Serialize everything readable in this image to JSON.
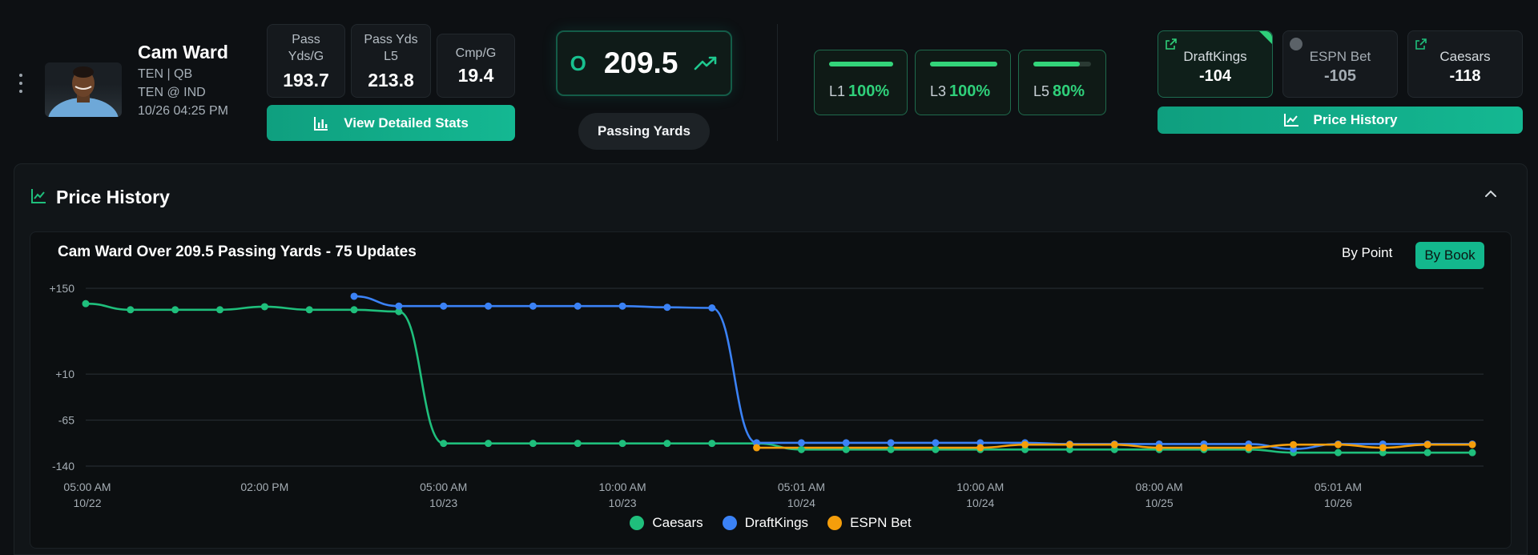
{
  "player": {
    "name": "Cam Ward",
    "team_pos": "TEN | QB",
    "matchup": "TEN @ IND",
    "datetime": "10/26 04:25 PM"
  },
  "stats": [
    {
      "label": "Pass Yds/G",
      "value": "193.7"
    },
    {
      "label": "Pass Yds L5",
      "value": "213.8"
    },
    {
      "label": "Cmp/G",
      "value": "19.4"
    }
  ],
  "buttons": {
    "view_stats": "View Detailed Stats",
    "price_history": "Price History"
  },
  "line": {
    "side": "O",
    "value": "209.5",
    "market": "Passing Yards"
  },
  "hit_rates": [
    {
      "label": "L1",
      "value": "100%",
      "pct": 100
    },
    {
      "label": "L3",
      "value": "100%",
      "pct": 100
    },
    {
      "label": "L5",
      "value": "80%",
      "pct": 80
    }
  ],
  "books": [
    {
      "name": "DraftKings",
      "price": "-104"
    },
    {
      "name": "ESPN Bet",
      "price": "-105"
    },
    {
      "name": "Caesars",
      "price": "-118"
    }
  ],
  "panel": {
    "title": "Price History",
    "by_point": "By Point",
    "by_book": "By Book"
  },
  "chart_data": {
    "type": "line",
    "title": "Cam Ward Over 209.5 Passing Yards - 75 Updates",
    "y_ticks": [
      150,
      10,
      -65,
      -140
    ],
    "y_tick_labels": [
      "+150",
      "+10",
      "-65",
      "-140"
    ],
    "ylim": [
      -140,
      150
    ],
    "xlim": [
      0,
      31
    ],
    "x_tick_pos": [
      0,
      4,
      8,
      12,
      16,
      20,
      24,
      28
    ],
    "x_tick_labels": [
      [
        "05:00 AM",
        "10/22"
      ],
      [
        "02:00 PM",
        ""
      ],
      [
        "05:00 AM",
        "10/23"
      ],
      [
        "10:00 AM",
        "10/23"
      ],
      [
        "05:01 AM",
        "10/24"
      ],
      [
        "10:00 AM",
        "10/24"
      ],
      [
        "08:00 AM",
        "10/25"
      ],
      [
        "05:01 AM",
        "10/26"
      ]
    ],
    "series": [
      {
        "name": "Caesars",
        "color": "#1fbf7c",
        "points": [
          [
            0,
            125
          ],
          [
            1,
            115
          ],
          [
            2,
            115
          ],
          [
            3,
            115
          ],
          [
            4,
            120
          ],
          [
            5,
            115
          ],
          [
            6,
            115
          ],
          [
            7,
            112
          ],
          [
            8,
            -103
          ],
          [
            9,
            -103
          ],
          [
            10,
            -103
          ],
          [
            11,
            -103
          ],
          [
            12,
            -103
          ],
          [
            13,
            -103
          ],
          [
            14,
            -103
          ],
          [
            15,
            -103
          ],
          [
            16,
            -113
          ],
          [
            17,
            -113
          ],
          [
            18,
            -113
          ],
          [
            19,
            -113
          ],
          [
            20,
            -113
          ],
          [
            21,
            -113
          ],
          [
            22,
            -113
          ],
          [
            23,
            -113
          ],
          [
            24,
            -113
          ],
          [
            25,
            -113
          ],
          [
            26,
            -113
          ],
          [
            27,
            -118
          ],
          [
            28,
            -118
          ],
          [
            29,
            -118
          ],
          [
            30,
            -118
          ],
          [
            31,
            -118
          ]
        ]
      },
      {
        "name": "DraftKings",
        "color": "#3b82f6",
        "points": [
          [
            6,
            137
          ],
          [
            7,
            121
          ],
          [
            8,
            121
          ],
          [
            9,
            121
          ],
          [
            10,
            121
          ],
          [
            11,
            121
          ],
          [
            12,
            121
          ],
          [
            13,
            119
          ],
          [
            14,
            118
          ],
          [
            15,
            -102
          ],
          [
            16,
            -102
          ],
          [
            17,
            -102
          ],
          [
            18,
            -102
          ],
          [
            19,
            -102
          ],
          [
            20,
            -102
          ],
          [
            21,
            -102
          ],
          [
            22,
            -104
          ],
          [
            23,
            -104
          ],
          [
            24,
            -104
          ],
          [
            25,
            -104
          ],
          [
            26,
            -104
          ],
          [
            27,
            -112
          ],
          [
            28,
            -104
          ],
          [
            29,
            -104
          ],
          [
            30,
            -104
          ],
          [
            31,
            -104
          ]
        ]
      },
      {
        "name": "ESPN Bet",
        "color": "#f59e0b",
        "points": [
          [
            15,
            -110
          ],
          [
            20,
            -110
          ],
          [
            21,
            -105
          ],
          [
            22,
            -105
          ],
          [
            23,
            -105
          ],
          [
            24,
            -110
          ],
          [
            25,
            -110
          ],
          [
            26,
            -110
          ],
          [
            27,
            -105
          ],
          [
            28,
            -105
          ],
          [
            29,
            -110
          ],
          [
            30,
            -105
          ],
          [
            31,
            -105
          ]
        ]
      }
    ]
  }
}
